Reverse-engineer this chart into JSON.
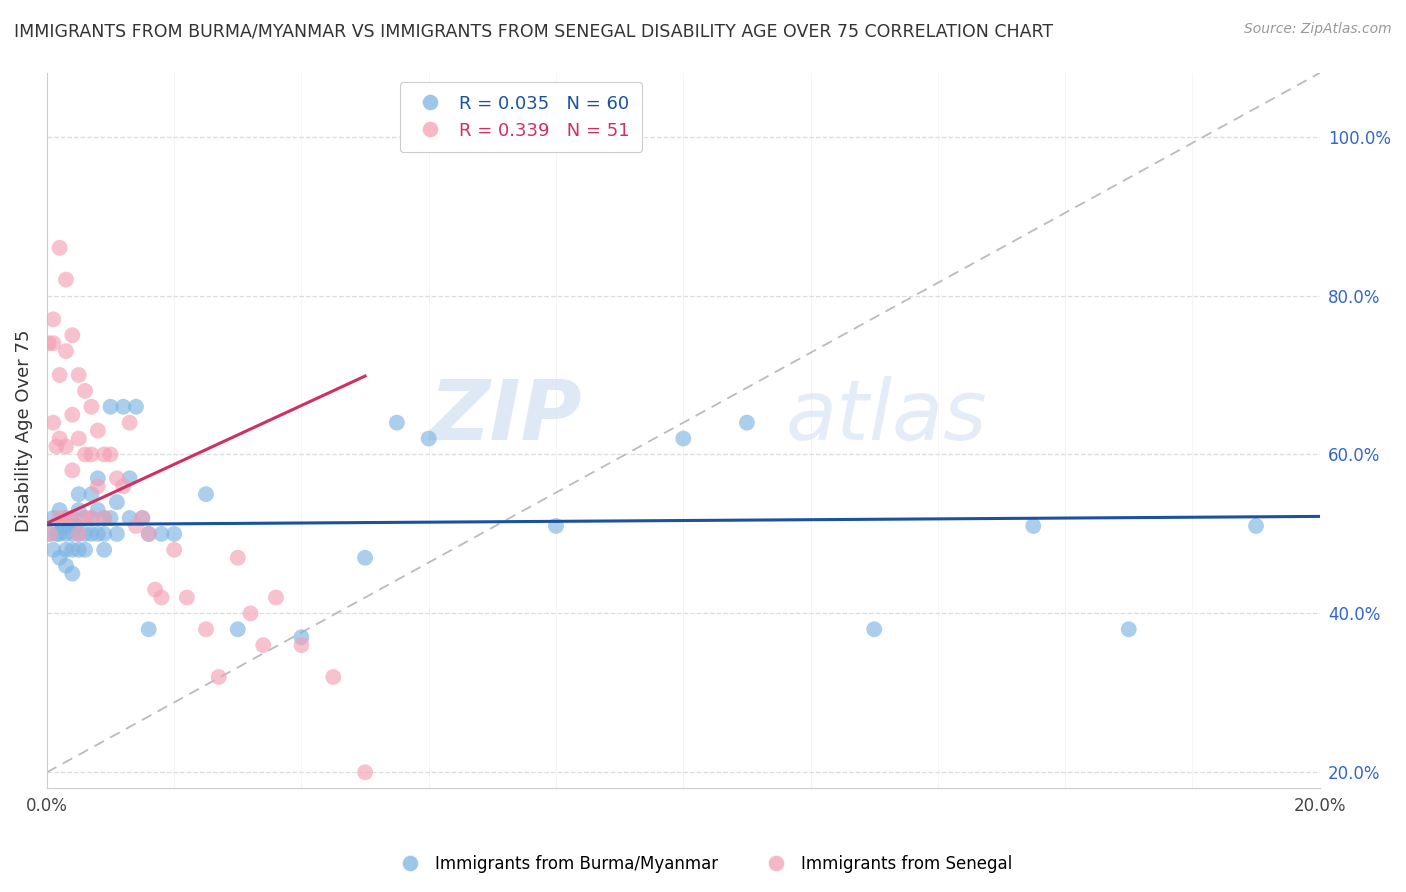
{
  "title": "IMMIGRANTS FROM BURMA/MYANMAR VS IMMIGRANTS FROM SENEGAL DISABILITY AGE OVER 75 CORRELATION CHART",
  "source": "Source: ZipAtlas.com",
  "ylabel": "Disability Age Over 75",
  "right_ytick_labels": [
    "100.0%",
    "80.0%",
    "60.0%",
    "40.0%",
    "20.0%"
  ],
  "right_ytick_values": [
    1.0,
    0.8,
    0.6,
    0.4,
    0.2
  ],
  "xlim": [
    0.0,
    0.2
  ],
  "ylim": [
    0.18,
    1.08
  ],
  "xtick_values": [
    0.0,
    0.02,
    0.04,
    0.06,
    0.08,
    0.1,
    0.12,
    0.14,
    0.16,
    0.18,
    0.2
  ],
  "blue_R": 0.035,
  "blue_N": 60,
  "pink_R": 0.339,
  "pink_N": 51,
  "blue_color": "#7EB4E2",
  "pink_color": "#F4A0B5",
  "blue_line_color": "#1A52A0",
  "pink_line_color": "#D03060",
  "ref_line_color": "#BBBBBB",
  "legend_blue_label": "Immigrants from Burma/Myanmar",
  "legend_pink_label": "Immigrants from Senegal",
  "watermark_zip": "ZIP",
  "watermark_atlas": "atlas",
  "blue_scatter_x": [
    0.0005,
    0.001,
    0.001,
    0.0015,
    0.002,
    0.002,
    0.002,
    0.0025,
    0.003,
    0.003,
    0.003,
    0.003,
    0.0035,
    0.004,
    0.004,
    0.004,
    0.004,
    0.0045,
    0.005,
    0.005,
    0.005,
    0.005,
    0.006,
    0.006,
    0.006,
    0.007,
    0.007,
    0.007,
    0.008,
    0.008,
    0.008,
    0.009,
    0.009,
    0.009,
    0.01,
    0.01,
    0.011,
    0.011,
    0.012,
    0.013,
    0.013,
    0.014,
    0.015,
    0.016,
    0.016,
    0.018,
    0.02,
    0.025,
    0.03,
    0.04,
    0.05,
    0.055,
    0.06,
    0.08,
    0.1,
    0.11,
    0.13,
    0.155,
    0.17,
    0.19
  ],
  "blue_scatter_y": [
    0.5,
    0.52,
    0.48,
    0.5,
    0.5,
    0.53,
    0.47,
    0.51,
    0.52,
    0.5,
    0.48,
    0.46,
    0.51,
    0.52,
    0.5,
    0.48,
    0.45,
    0.51,
    0.53,
    0.5,
    0.48,
    0.55,
    0.52,
    0.5,
    0.48,
    0.55,
    0.52,
    0.5,
    0.57,
    0.53,
    0.5,
    0.52,
    0.5,
    0.48,
    0.66,
    0.52,
    0.54,
    0.5,
    0.66,
    0.57,
    0.52,
    0.66,
    0.52,
    0.5,
    0.38,
    0.5,
    0.5,
    0.55,
    0.38,
    0.37,
    0.47,
    0.64,
    0.62,
    0.51,
    0.62,
    0.64,
    0.38,
    0.51,
    0.38,
    0.51
  ],
  "pink_scatter_x": [
    0.0003,
    0.0005,
    0.001,
    0.001,
    0.001,
    0.0015,
    0.002,
    0.002,
    0.002,
    0.002,
    0.003,
    0.003,
    0.003,
    0.003,
    0.004,
    0.004,
    0.004,
    0.004,
    0.005,
    0.005,
    0.005,
    0.006,
    0.006,
    0.006,
    0.007,
    0.007,
    0.007,
    0.008,
    0.008,
    0.009,
    0.009,
    0.01,
    0.011,
    0.012,
    0.013,
    0.014,
    0.015,
    0.016,
    0.017,
    0.018,
    0.02,
    0.022,
    0.025,
    0.027,
    0.03,
    0.032,
    0.034,
    0.036,
    0.04,
    0.045,
    0.05
  ],
  "pink_scatter_y": [
    0.74,
    0.5,
    0.77,
    0.64,
    0.74,
    0.61,
    0.86,
    0.7,
    0.62,
    0.52,
    0.82,
    0.73,
    0.61,
    0.52,
    0.75,
    0.65,
    0.58,
    0.52,
    0.7,
    0.62,
    0.5,
    0.68,
    0.6,
    0.52,
    0.66,
    0.6,
    0.52,
    0.63,
    0.56,
    0.6,
    0.52,
    0.6,
    0.57,
    0.56,
    0.64,
    0.51,
    0.52,
    0.5,
    0.43,
    0.42,
    0.48,
    0.42,
    0.38,
    0.32,
    0.47,
    0.4,
    0.36,
    0.42,
    0.36,
    0.32,
    0.2
  ]
}
